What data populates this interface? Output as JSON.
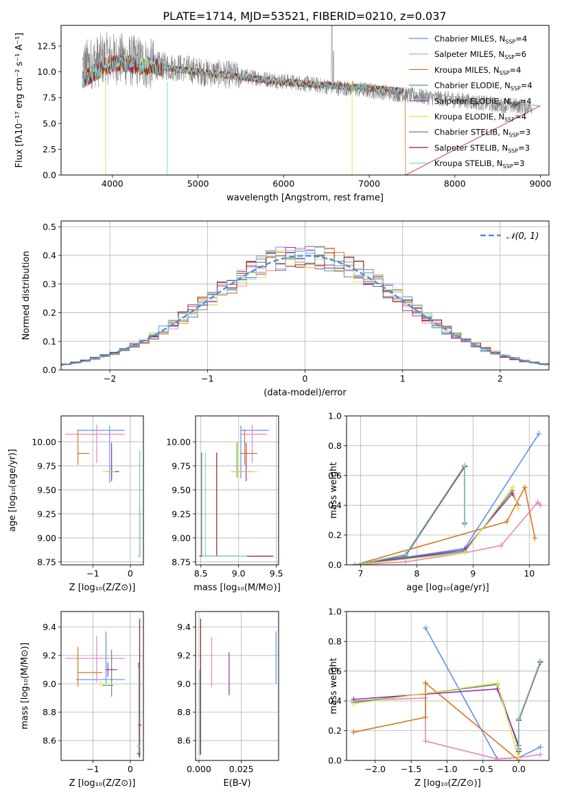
{
  "figure_title": "PLATE=1714, MJD=53521, FIBERID=0210, z=0.037",
  "colors": {
    "Chabrier MILES": "#5b8ff9",
    "Salpeter MILES": "#e884bd",
    "Kroupa MILES": "#d9731e",
    "Chabrier ELODIE": "#5f8f7a",
    "Salpeter ELODIE": "#9b2bb0",
    "Kroupa ELODIE": "#d9e84a",
    "Chabrier STELIB": "#666666",
    "Salpeter STELIB": "#a01818",
    "Kroupa STELIB": "#7dd6d6",
    "data": "#808080",
    "normal": "#5b8ad6"
  },
  "chart_data": [
    {
      "id": "spectrum",
      "type": "line",
      "title": "PLATE=1714, MJD=53521, FIBERID=0210, z=0.037",
      "xlabel": "wavelength [Angstrom, rest frame]",
      "ylabel": "Flux [fλ10⁻¹⁷ erg cm⁻² s⁻¹ A⁻¹]",
      "xlim": [
        3400,
        9100
      ],
      "ylim": [
        0,
        14.5
      ],
      "xticks": [
        4000,
        5000,
        6000,
        7000,
        8000,
        9000
      ],
      "yticks": [
        0.0,
        2.5,
        5.0,
        7.5,
        10.0,
        12.5
      ],
      "grid": false,
      "legend_position": "top-right",
      "legend": [
        {
          "name": "Chabrier MILES",
          "nssp": "4"
        },
        {
          "name": "Salpeter MILES",
          "nssp": "6"
        },
        {
          "name": "Kroupa MILES",
          "nssp": "4"
        },
        {
          "name": "Chabrier ELODIE",
          "nssp": "4"
        },
        {
          "name": "Salpeter ELODIE",
          "nssp": "4"
        },
        {
          "name": "Kroupa ELODIE",
          "nssp": "4"
        },
        {
          "name": "Chabrier STELIB",
          "nssp": "3"
        },
        {
          "name": "Salpeter STELIB",
          "nssp": "3"
        },
        {
          "name": "Kroupa STELIB",
          "nssp": "3"
        }
      ],
      "data_envelope": {
        "x": [
          3650,
          3800,
          3950,
          4100,
          4300,
          4500,
          4800,
          5100,
          5500,
          6000,
          6500,
          7000,
          7500,
          8000,
          8500,
          8900
        ],
        "y": [
          10.5,
          11.0,
          11.3,
          11.2,
          11.0,
          10.6,
          10.4,
          9.9,
          9.6,
          9.1,
          8.6,
          8.2,
          7.7,
          7.3,
          6.8,
          6.6
        ]
      },
      "model_envelope": {
        "x": [
          3650,
          3800,
          3950,
          4100,
          4300,
          4500,
          4800,
          5100,
          5500,
          6000,
          6500,
          7000,
          7400
        ],
        "y": [
          9.2,
          10.0,
          10.6,
          10.9,
          10.6,
          10.5,
          10.2,
          9.9,
          9.5,
          9.0,
          8.7,
          8.4,
          8.1
        ]
      }
    },
    {
      "id": "residuals",
      "type": "line",
      "xlabel": "(data-model)/error",
      "ylabel": "Normed distribution",
      "xlim": [
        -2.5,
        2.5
      ],
      "ylim": [
        0,
        0.52
      ],
      "xticks": [
        -2,
        -1,
        0,
        1,
        2
      ],
      "yticks": [
        0.0,
        0.1,
        0.2,
        0.3,
        0.4,
        0.5
      ],
      "grid": true,
      "legend_position": "top-right",
      "legend": [
        "𝒩(0, 1)"
      ],
      "histogram_bin_width": 0.1,
      "normal": {
        "mean": 0,
        "sigma": 1
      }
    },
    {
      "id": "age_vs_Z",
      "type": "scatter",
      "xlabel": "Z [log₁₀(Z/Z⊙)]",
      "ylabel": "age  [log₁₀(age/yr)]",
      "xlim": [
        -1.85,
        0.35
      ],
      "ylim": [
        8.72,
        10.27
      ],
      "xticks": [
        -1,
        0
      ],
      "yticks": [
        8.75,
        9.0,
        9.25,
        9.5,
        9.75,
        10.0
      ],
      "grid": true,
      "points": [
        {
          "model": "Chabrier MILES",
          "x": -0.55,
          "y": 10.12,
          "x_err": [
            0.85,
            0.4
          ],
          "y_err": [
            0.55,
            0.05
          ]
        },
        {
          "model": "Salpeter MILES",
          "x": -0.9,
          "y": 10.08,
          "x_err": [
            0.85,
            0.75
          ],
          "y_err": [
            0.3,
            0.1
          ]
        },
        {
          "model": "Kroupa MILES",
          "x": -1.4,
          "y": 9.88,
          "x_err": [
            0,
            0.3
          ],
          "y_err": [
            0.12,
            0.25
          ]
        },
        {
          "model": "Chabrier ELODIE",
          "x": -0.5,
          "y": 9.69,
          "x_err": [
            0.2,
            0.2
          ],
          "y_err": [
            0.05,
            0.05
          ]
        },
        {
          "model": "Salpeter ELODIE",
          "x": -0.5,
          "y": 9.69,
          "x_err": [
            0.05,
            0.2
          ],
          "y_err": [
            0.1,
            0.3
          ]
        },
        {
          "model": "Kroupa ELODIE",
          "x": -0.55,
          "y": 9.69,
          "x_err": [
            0.2,
            0.15
          ],
          "y_err": [
            0,
            0
          ]
        },
        {
          "model": "Chabrier STELIB",
          "x": 0.25,
          "y": 8.81,
          "x_err": [
            0.05,
            0.02
          ],
          "y_err": [
            0,
            1.1
          ]
        },
        {
          "model": "Salpeter STELIB",
          "x": 0.25,
          "y": 8.81,
          "x_err": [
            0.02,
            0.02
          ],
          "y_err": [
            0,
            0.5
          ]
        },
        {
          "model": "Kroupa STELIB",
          "x": 0.25,
          "y": 8.81,
          "x_err": [
            0.05,
            0.02
          ],
          "y_err": [
            0,
            1.1
          ]
        }
      ]
    },
    {
      "id": "age_vs_mass",
      "type": "scatter",
      "xlabel": "mass [log₁₀(M/M⊙)]",
      "ylabel": "",
      "xlim": [
        8.43,
        9.53
      ],
      "ylim": [
        8.72,
        10.27
      ],
      "xticks": [
        8.5,
        9.0,
        9.5
      ],
      "yticks": [
        8.75,
        9.0,
        9.25,
        9.5,
        9.75,
        10.0
      ],
      "grid": true,
      "points": [
        {
          "model": "Chabrier MILES",
          "x": 9.03,
          "y": 10.12,
          "x_err": [
            0,
            0.37
          ],
          "y_err": [
            0.5,
            0.05
          ]
        },
        {
          "model": "Salpeter MILES",
          "x": 9.18,
          "y": 10.08,
          "x_err": [
            0.16,
            0.2
          ],
          "y_err": [
            0.3,
            0.1
          ]
        },
        {
          "model": "Kroupa MILES",
          "x": 9.08,
          "y": 9.88,
          "x_err": [
            0.06,
            0.17
          ],
          "y_err": [
            0.12,
            0.25
          ]
        },
        {
          "model": "Chabrier ELODIE",
          "x": 8.98,
          "y": 9.69,
          "x_err": [
            0.08,
            0.15
          ],
          "y_err": [
            0.06,
            0.3
          ]
        },
        {
          "model": "Salpeter ELODIE",
          "x": 9.1,
          "y": 9.69,
          "x_err": [
            0.12,
            0.1
          ],
          "y_err": [
            0.1,
            0.3
          ]
        },
        {
          "model": "Kroupa ELODIE",
          "x": 9.0,
          "y": 9.69,
          "x_err": [
            0.1,
            0.25
          ],
          "y_err": [
            0.1,
            0.3
          ]
        },
        {
          "model": "Chabrier STELIB",
          "x": 8.51,
          "y": 8.81,
          "x_err": [
            0.01,
            0.5
          ],
          "y_err": [
            0,
            1.08
          ]
        },
        {
          "model": "Salpeter STELIB",
          "x": 8.71,
          "y": 8.81,
          "x_err": [
            0.23,
            0.75
          ],
          "y_err": [
            0,
            1.08
          ]
        },
        {
          "model": "Kroupa STELIB",
          "x": 8.56,
          "y": 8.81,
          "x_err": [
            0.05,
            0.55
          ],
          "y_err": [
            0,
            1.08
          ]
        }
      ]
    },
    {
      "id": "massweight_vs_age",
      "type": "line",
      "xlabel": "age  [log₁₀(age/yr)]",
      "ylabel": "mass weight",
      "xlim": [
        6.75,
        10.35
      ],
      "ylim": [
        0,
        1.0
      ],
      "xticks": [
        7,
        8,
        9,
        10
      ],
      "yticks": [
        0.0,
        0.2,
        0.4,
        0.6,
        0.8,
        1.0
      ],
      "grid": true,
      "series": [
        {
          "model": "Chabrier MILES",
          "x": [
            6.9,
            8.85,
            10.17
          ],
          "y": [
            0.0,
            0.11,
            0.88
          ]
        },
        {
          "model": "Salpeter MILES",
          "x": [
            6.9,
            7.8,
            8.85,
            9.5,
            10.15,
            10.2
          ],
          "y": [
            0.0,
            0.02,
            0.08,
            0.13,
            0.42,
            0.4
          ]
        },
        {
          "model": "Kroupa MILES",
          "x": [
            6.9,
            9.6,
            9.92,
            10.1
          ],
          "y": [
            0.0,
            0.29,
            0.52,
            0.18
          ]
        },
        {
          "model": "Chabrier ELODIE",
          "x": [
            6.9,
            8.85,
            9.7
          ],
          "y": [
            0.0,
            0.09,
            0.5
          ]
        },
        {
          "model": "Salpeter ELODIE",
          "x": [
            6.9,
            8.85,
            9.7,
            9.8
          ],
          "y": [
            0.0,
            0.1,
            0.48,
            0.4
          ]
        },
        {
          "model": "Kroupa ELODIE",
          "x": [
            6.9,
            8.85,
            9.7,
            9.8
          ],
          "y": [
            0.0,
            0.08,
            0.52,
            0.38
          ]
        },
        {
          "model": "Chabrier STELIB",
          "x": [
            6.9,
            7.8,
            8.85,
            8.85
          ],
          "y": [
            0.0,
            0.06,
            0.66,
            0.28
          ]
        },
        {
          "model": "Salpeter STELIB",
          "x": [
            6.9,
            7.8,
            8.85,
            8.85
          ],
          "y": [
            0.0,
            0.07,
            0.66,
            0.27
          ]
        },
        {
          "model": "Kroupa STELIB",
          "x": [
            6.9,
            7.8,
            8.85,
            8.85
          ],
          "y": [
            0.0,
            0.07,
            0.67,
            0.27
          ]
        }
      ]
    },
    {
      "id": "mass_vs_Z",
      "type": "scatter",
      "xlabel": "Z [log₁₀(Z/Z⊙)]",
      "ylabel": "mass [log₁₀(M/M⊙)]",
      "xlim": [
        -1.85,
        0.35
      ],
      "ylim": [
        8.46,
        9.51
      ],
      "xticks": [
        -1,
        0
      ],
      "yticks": [
        8.6,
        8.8,
        9.0,
        9.2,
        9.4
      ],
      "grid": true,
      "points": [
        {
          "model": "Chabrier MILES",
          "x": -0.65,
          "y": 9.03,
          "x_err": [
            0.8,
            0.5
          ],
          "y_err": [
            0.03,
            0.34
          ]
        },
        {
          "model": "Salpeter MILES",
          "x": -0.9,
          "y": 9.18,
          "x_err": [
            0.85,
            0.75
          ],
          "y_err": [
            0.17,
            0.16
          ]
        },
        {
          "model": "Kroupa MILES",
          "x": -1.4,
          "y": 9.08,
          "x_err": [
            0,
            0.65
          ],
          "y_err": [
            0.1,
            0.18
          ]
        },
        {
          "model": "Chabrier ELODIE",
          "x": -0.5,
          "y": 8.99,
          "x_err": [
            0.25,
            0.05
          ],
          "y_err": [
            0.08,
            0.25
          ]
        },
        {
          "model": "Salpeter ELODIE",
          "x": -0.6,
          "y": 9.1,
          "x_err": [
            0.05,
            0.25
          ],
          "y_err": [
            0.05,
            0.05
          ]
        },
        {
          "model": "Kroupa ELODIE",
          "x": -0.8,
          "y": 9.0,
          "x_err": [
            0.05,
            0.4
          ],
          "y_err": [
            0.02,
            0.02
          ]
        },
        {
          "model": "Chabrier STELIB",
          "x": 0.22,
          "y": 8.51,
          "x_err": [
            0.05,
            0.05
          ],
          "y_err": [
            0.02,
            0.64
          ]
        },
        {
          "model": "Salpeter STELIB",
          "x": 0.25,
          "y": 8.71,
          "x_err": [
            0.05,
            0.05
          ],
          "y_err": [
            0.23,
            0.75
          ]
        },
        {
          "model": "Kroupa STELIB",
          "x": 0.22,
          "y": 8.56,
          "x_err": [
            0.05,
            0.05
          ],
          "y_err": [
            0.05,
            0.55
          ]
        }
      ]
    },
    {
      "id": "mass_vs_EBV",
      "type": "scatter",
      "xlabel": "E(B-V)",
      "ylabel": "",
      "xlim": [
        -0.002,
        0.047
      ],
      "ylim": [
        8.46,
        9.51
      ],
      "xticks": [
        0.0,
        0.025
      ],
      "yticks": [
        8.6,
        8.8,
        9.0,
        9.2,
        9.4
      ],
      "grid": true,
      "points": [
        {
          "model": "Chabrier MILES",
          "x": 0.0455,
          "y": 9.2,
          "x_err": [
            0,
            0
          ],
          "y_err": [
            0.2,
            0.17
          ]
        },
        {
          "model": "Salpeter MILES",
          "x": 0.0075,
          "y": 9.15,
          "x_err": [
            0,
            0
          ],
          "y_err": [
            0.17,
            0.18
          ]
        },
        {
          "model": "Kroupa MILES",
          "x": 0.0005,
          "y": 9.0,
          "x_err": [
            0,
            0
          ],
          "y_err": [
            0.1,
            0.1
          ]
        },
        {
          "model": "Chabrier ELODIE",
          "x": 0.0005,
          "y": 8.8,
          "x_err": [
            0,
            0
          ],
          "y_err": [
            0.25,
            0.25
          ]
        },
        {
          "model": "Salpeter ELODIE",
          "x": 0.0178,
          "y": 9.07,
          "x_err": [
            0,
            0
          ],
          "y_err": [
            0.15,
            0.15
          ]
        },
        {
          "model": "Kroupa ELODIE",
          "x": 0.0005,
          "y": 9.0,
          "x_err": [
            0,
            0
          ],
          "y_err": [
            0.1,
            0.1
          ]
        },
        {
          "model": "Chabrier STELIB",
          "x": 0.0005,
          "y": 8.8,
          "x_err": [
            0,
            0
          ],
          "y_err": [
            0.3,
            0.3
          ]
        },
        {
          "model": "Salpeter STELIB",
          "x": 0.001,
          "y": 9.0,
          "x_err": [
            0,
            0
          ],
          "y_err": [
            0.5,
            0.46
          ]
        },
        {
          "model": "Kroupa STELIB",
          "x": 0.0005,
          "y": 8.8,
          "x_err": [
            0,
            0
          ],
          "y_err": [
            0.3,
            0.3
          ]
        }
      ]
    },
    {
      "id": "massweight_vs_Z",
      "type": "line",
      "xlabel": "Z [log₁₀(Z/Z⊙)]",
      "ylabel": "mass weight",
      "xlim": [
        -2.4,
        0.42
      ],
      "ylim": [
        0,
        1.0
      ],
      "xticks": [
        -2.0,
        -1.5,
        -1.0,
        -0.5,
        0.0
      ],
      "yticks": [
        0.0,
        0.2,
        0.4,
        0.6,
        0.8,
        1.0
      ],
      "grid": true,
      "series": [
        {
          "model": "Chabrier MILES",
          "x": [
            -1.3,
            -0.3,
            0.0,
            0.3
          ],
          "y": [
            0.89,
            0.01,
            0.02,
            0.09
          ]
        },
        {
          "model": "Salpeter MILES",
          "x": [
            -2.3,
            -1.3,
            -1.3,
            -0.3,
            0.0,
            0.3
          ],
          "y": [
            0.4,
            0.42,
            0.13,
            0.01,
            0.02,
            0.04
          ]
        },
        {
          "model": "Kroupa MILES",
          "x": [
            -2.3,
            -1.3,
            -1.3,
            0.0
          ],
          "y": [
            0.19,
            0.29,
            0.52,
            0.0
          ]
        },
        {
          "model": "Chabrier ELODIE",
          "x": [
            -2.3,
            -0.3,
            0.0,
            0.0,
            0.3
          ],
          "y": [
            0.39,
            0.51,
            0.08,
            0.28,
            0.66
          ]
        },
        {
          "model": "Salpeter ELODIE",
          "x": [
            -2.3,
            -0.3,
            0.0,
            0.0,
            0.3
          ],
          "y": [
            0.41,
            0.48,
            0.1,
            0.28,
            0.66
          ]
        },
        {
          "model": "Kroupa ELODIE",
          "x": [
            -2.3,
            -0.3,
            0.0,
            0.0,
            0.3
          ],
          "y": [
            0.38,
            0.52,
            0.01,
            0.28,
            0.66
          ]
        },
        {
          "model": "Chabrier STELIB",
          "x": [
            0.0,
            0.0,
            0.3
          ],
          "y": [
            0.07,
            0.28,
            0.66
          ]
        },
        {
          "model": "Salpeter STELIB",
          "x": [
            0.0,
            0.0,
            0.3
          ],
          "y": [
            0.06,
            0.27,
            0.66
          ]
        },
        {
          "model": "Kroupa STELIB",
          "x": [
            0.0,
            0.0,
            0.3
          ],
          "y": [
            0.07,
            0.28,
            0.67
          ]
        }
      ]
    }
  ]
}
